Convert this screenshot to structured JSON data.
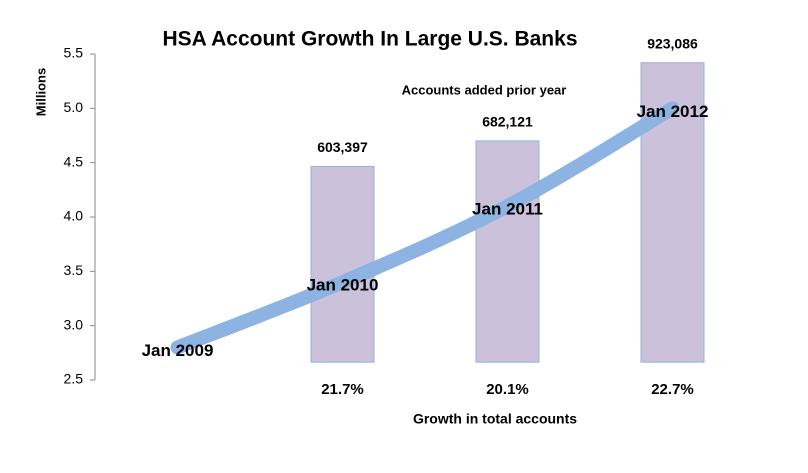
{
  "chart_data": {
    "type": "bar-line",
    "title": "HSA Account Growth In Large U.S. Banks",
    "y_label": "Millions",
    "categories": [
      "Jan 2009",
      "Jan 2010",
      "Jan 2011",
      "Jan 2012"
    ],
    "ylim": [
      2.5,
      5.5
    ],
    "yticks": [
      2.5,
      {
        "value": 3,
        "label": "3.0"
      },
      3.5,
      {
        "value": 4,
        "label": "4.0"
      },
      4.5,
      {
        "value": 5,
        "label": "5.0"
      },
      5.5
    ],
    "y2lim": [
      -55000,
      950000
    ],
    "grid": false,
    "series": [
      {
        "name": "Accounts added prior year",
        "type": "bar",
        "axis": "y2",
        "color": "#ccc1da",
        "edge_color": "#95b3d7",
        "values": [
          null,
          603397,
          682121,
          923086
        ],
        "value_labels": [
          null,
          "603,397",
          "682,121",
          "923,086"
        ]
      },
      {
        "type": "line",
        "color": "#8db3e2",
        "values": [
          2.8,
          3.4,
          4.1,
          5.0
        ]
      }
    ],
    "growth": {
      "label": "Growth in total accounts",
      "values": [
        null,
        21.7,
        20.1,
        22.7
      ],
      "value_labels": [
        null,
        "21.7%",
        "20.1%",
        "22.7%"
      ]
    }
  }
}
